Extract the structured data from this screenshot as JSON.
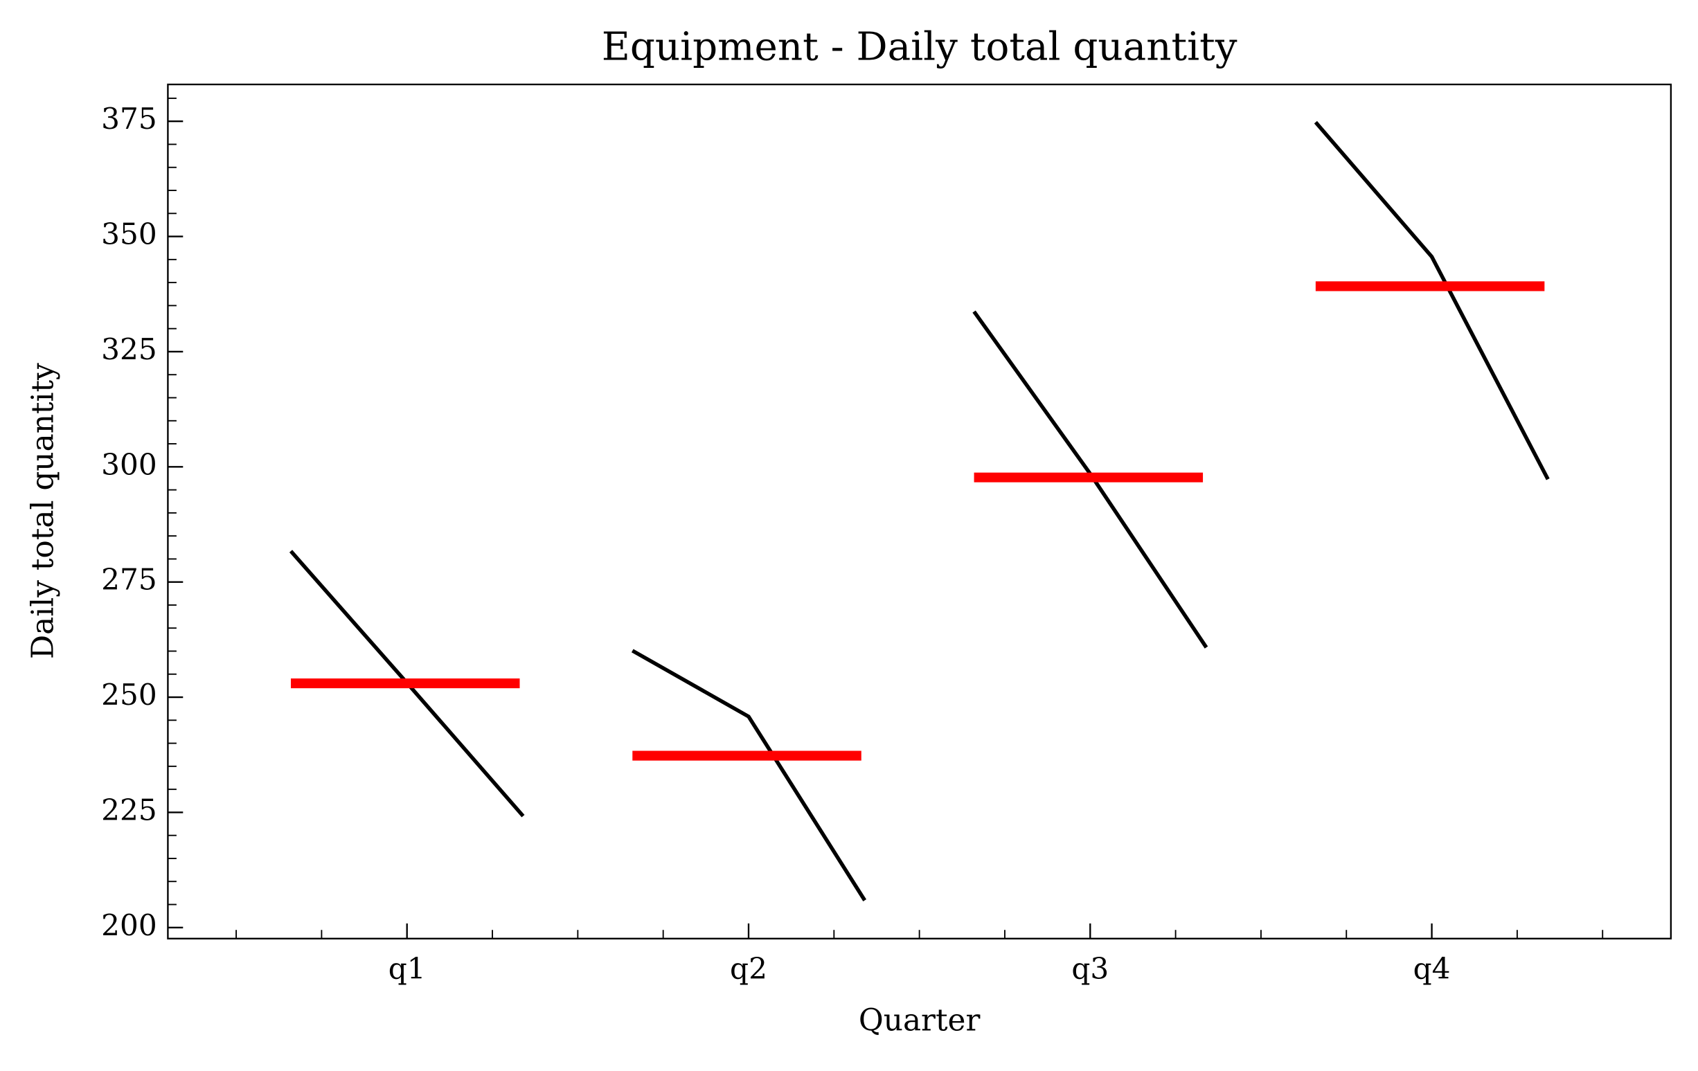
{
  "chart_data": {
    "type": "seasonal",
    "title": "Equipment - Daily total quantity",
    "x_label": "Quarter",
    "y_label": "Daily total quantity",
    "categories": [
      "q1",
      "q2",
      "q3",
      "q4"
    ],
    "subseries": [
      {
        "values": [
          281.7,
          253.1,
          224.2
        ],
        "mean": 253.0
      },
      {
        "values": [
          260.1,
          245.8,
          205.9
        ],
        "mean": 237.3
      },
      {
        "values": [
          333.7,
          298.5,
          260.8
        ],
        "mean": 297.7
      },
      {
        "values": [
          374.8,
          345.6,
          297.3
        ],
        "mean": 339.2
      }
    ],
    "line_color": "#000000",
    "mean_color": "#ff0000",
    "xlim": [
      -0.7,
      3.7
    ],
    "xminorticks": [
      -0.5,
      -0.25,
      0.25,
      0.5,
      0.75,
      1.25,
      1.5,
      1.75,
      2.25,
      2.5,
      2.75,
      3.25,
      3.5
    ],
    "ylim": [
      197.6,
      383
    ],
    "yticks": [
      200,
      225,
      250,
      275,
      300,
      325,
      350,
      375
    ],
    "yminorticks": [
      205,
      210,
      215,
      220,
      230,
      235,
      240,
      245,
      255,
      260,
      265,
      270,
      280,
      285,
      290,
      295,
      305,
      310,
      315,
      320,
      330,
      335,
      340,
      345,
      355,
      360,
      365,
      370,
      380
    ],
    "grid": false
  }
}
